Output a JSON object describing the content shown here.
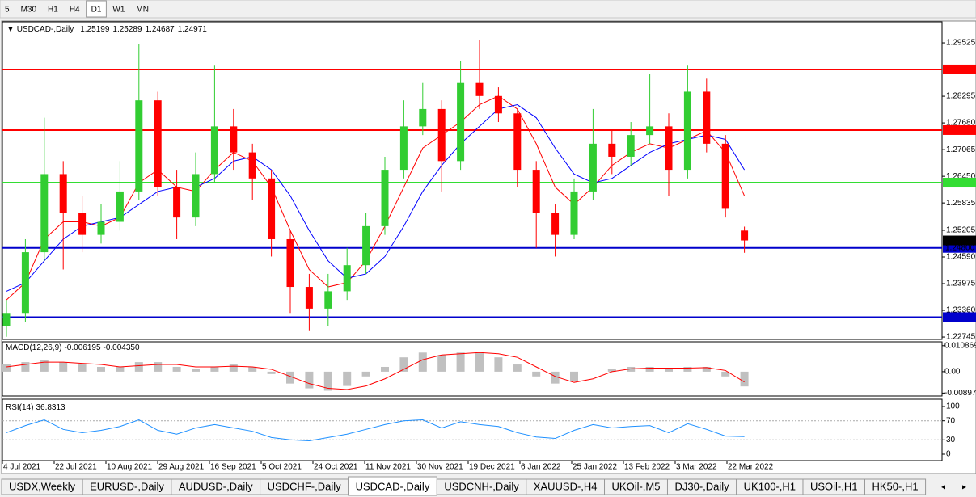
{
  "toolbar": {
    "timeframes": [
      "5",
      "M30",
      "H1",
      "H4",
      "D1",
      "W1",
      "MN"
    ]
  },
  "chart_data": {
    "type": "candlestick",
    "title": "USDCAD-,Daily",
    "bull_color": "#32cd32",
    "bear_color": "#ff0000",
    "open": [
      1.23,
      1.233,
      1.247,
      1.265,
      1.256,
      1.251,
      1.254,
      1.261,
      1.282,
      1.262,
      1.255,
      1.265,
      1.276,
      1.27,
      1.264,
      1.25,
      1.239,
      1.234,
      1.238,
      1.244,
      1.253,
      1.266,
      1.276,
      1.28,
      1.268,
      1.286,
      1.283,
      1.279,
      1.266,
      1.256,
      1.251,
      1.261,
      1.272,
      1.269,
      1.274,
      1.276,
      1.266,
      1.284,
      1.272,
      1.25199
    ],
    "high": [
      1.236,
      1.25,
      1.278,
      1.268,
      1.26,
      1.258,
      1.268,
      1.295,
      1.284,
      1.266,
      1.27,
      1.29,
      1.28,
      1.272,
      1.266,
      1.252,
      1.242,
      1.242,
      1.248,
      1.256,
      1.269,
      1.282,
      1.286,
      1.282,
      1.291,
      1.296,
      1.285,
      1.28,
      1.268,
      1.258,
      1.264,
      1.28,
      1.275,
      1.277,
      1.288,
      1.279,
      1.29,
      1.287,
      1.274,
      1.25289
    ],
    "low": [
      1.2275,
      1.231,
      1.245,
      1.243,
      1.247,
      1.249,
      1.252,
      1.259,
      1.26,
      1.25,
      1.253,
      1.263,
      1.266,
      1.259,
      1.246,
      1.233,
      1.229,
      1.23,
      1.236,
      1.242,
      1.251,
      1.264,
      1.274,
      1.261,
      1.266,
      1.28,
      1.277,
      1.262,
      1.248,
      1.246,
      1.25,
      1.259,
      1.265,
      1.267,
      1.272,
      1.26,
      1.264,
      1.27,
      1.255,
      1.24687
    ],
    "close": [
      1.233,
      1.247,
      1.265,
      1.256,
      1.251,
      1.254,
      1.261,
      1.282,
      1.262,
      1.255,
      1.265,
      1.276,
      1.27,
      1.264,
      1.25,
      1.239,
      1.234,
      1.238,
      1.244,
      1.253,
      1.266,
      1.276,
      1.28,
      1.268,
      1.286,
      1.283,
      1.279,
      1.266,
      1.256,
      1.251,
      1.261,
      1.272,
      1.269,
      1.274,
      1.276,
      1.266,
      1.284,
      1.272,
      1.257,
      1.24971
    ],
    "moving_averages": [
      {
        "color": "#ff0000",
        "values": [
          1.236,
          1.24,
          1.25,
          1.254,
          1.254,
          1.253,
          1.255,
          1.263,
          1.266,
          1.262,
          1.261,
          1.266,
          1.27,
          1.268,
          1.262,
          1.252,
          1.243,
          1.239,
          1.24,
          1.245,
          1.253,
          1.262,
          1.271,
          1.274,
          1.277,
          1.281,
          1.283,
          1.28,
          1.272,
          1.262,
          1.258,
          1.262,
          1.267,
          1.27,
          1.272,
          1.271,
          1.273,
          1.275,
          1.27,
          1.26
        ]
      },
      {
        "color": "#0000ff",
        "values": [
          1.238,
          1.24,
          1.245,
          1.25,
          1.253,
          1.254,
          1.255,
          1.258,
          1.261,
          1.262,
          1.262,
          1.264,
          1.268,
          1.269,
          1.266,
          1.26,
          1.252,
          1.245,
          1.241,
          1.242,
          1.246,
          1.253,
          1.261,
          1.267,
          1.272,
          1.276,
          1.28,
          1.281,
          1.278,
          1.271,
          1.265,
          1.263,
          1.264,
          1.267,
          1.27,
          1.272,
          1.273,
          1.274,
          1.273,
          1.266
        ]
      }
    ],
    "ylim": [
      1.2269,
      1.3001
    ],
    "yticks": [
      1.29525,
      1.28295,
      {
        "value": 1.2768,
        "label": "1.27680"
      },
      1.27065,
      {
        "value": 1.2645,
        "label": "1.26450"
      },
      1.25835,
      1.25205,
      {
        "value": 1.2459,
        "label": "1.24590"
      },
      1.23975,
      {
        "value": 1.2336,
        "label": "1.23360"
      },
      1.22745
    ],
    "levels": [
      {
        "value": 1.28912,
        "color": "#ff0000"
      },
      {
        "value": 1.27515,
        "color": "#ff0000"
      },
      {
        "value": 1.26303,
        "color": "#33dd33"
      },
      {
        "value": 1.248,
        "label": "1.24800",
        "color": "#0000cc"
      },
      {
        "value": 1.23203,
        "color": "#0000cc"
      }
    ],
    "x_labels": [
      "4 Jul 2021",
      "22 Jul 2021",
      "10 Aug 2021",
      "29 Aug 2021",
      "16 Sep 2021",
      "5 Oct 2021",
      "24 Oct 2021",
      "11 Nov 2021",
      "30 Nov 2021",
      "19 Dec 2021",
      "6 Jan 2022",
      "25 Jan 2022",
      "13 Feb 2022",
      "3 Mar 2022",
      "22 Mar 2022"
    ],
    "indicators": [
      {
        "type": "macd",
        "label": "MACD(12,26,9)",
        "histogram": {
          "color": "#c0c0c0",
          "values": [
            0.003,
            0.004,
            0.005,
            0.004,
            0.003,
            0.002,
            0.002,
            0.004,
            0.004,
            0.002,
            0.001,
            0.002,
            0.003,
            0.002,
            -0.001,
            -0.005,
            -0.007,
            -0.008,
            -0.006,
            -0.002,
            0.002,
            0.006,
            0.008,
            0.007,
            0.008,
            0.008,
            0.006,
            0.003,
            -0.002,
            -0.005,
            -0.004,
            0.0,
            0.001,
            0.002,
            0.002,
            0.001,
            0.002,
            0.002,
            -0.002,
            -0.006195
          ]
        },
        "signal": {
          "color": "#ff0000",
          "values": [
            0.002,
            0.003,
            0.004,
            0.004,
            0.0035,
            0.003,
            0.002,
            0.0025,
            0.003,
            0.003,
            0.002,
            0.002,
            0.0023,
            0.002,
            0.001,
            -0.002,
            -0.005,
            -0.007,
            -0.0075,
            -0.006,
            -0.003,
            0.001,
            0.005,
            0.007,
            0.0075,
            0.008,
            0.0075,
            0.006,
            0.002,
            -0.002,
            -0.0045,
            -0.003,
            0.0,
            0.0012,
            0.0015,
            0.0015,
            0.0015,
            0.0017,
            0.0005,
            -0.00435
          ],
          "value_labels": [
            null,
            null,
            null,
            null,
            null,
            null,
            null,
            null,
            null,
            null,
            null,
            null,
            null,
            null,
            null,
            null,
            null,
            null,
            null,
            null,
            null,
            null,
            null,
            null,
            null,
            null,
            null,
            null,
            null,
            null,
            null,
            null,
            null,
            null,
            null,
            null,
            null,
            null,
            null,
            "-0.004350"
          ]
        },
        "ylim": [
          -0.0102,
          0.0125
        ],
        "yticks": [
          0.010869,
          {
            "value": 0,
            "label": "0.00"
          },
          -0.008974
        ]
      },
      {
        "type": "rsi",
        "label": "RSI(14)",
        "line": {
          "color": "#1e90ff",
          "values": [
            45,
            60,
            72,
            52,
            45,
            50,
            58,
            72,
            50,
            42,
            55,
            62,
            55,
            48,
            35,
            30,
            28,
            35,
            42,
            52,
            62,
            70,
            72,
            55,
            68,
            62,
            58,
            45,
            36,
            33,
            50,
            62,
            55,
            58,
            60,
            45,
            64,
            52,
            38,
            36.8313
          ]
        },
        "ylim": [
          0,
          100
        ],
        "yticks": [
          100,
          70,
          30,
          0
        ],
        "levels": [
          70,
          30
        ]
      }
    ]
  },
  "tabs": [
    "USDX,Weekly",
    "EURUSD-,Daily",
    "AUDUSD-,Daily",
    "USDCHF-,Daily",
    "USDCAD-,Daily",
    "USDCNH-,Daily",
    "XAUUSD-,H4",
    "UKOil-,M5",
    "DJ30-,Daily",
    "UK100-,H1",
    "USOil-,H1",
    "HK50-,H1"
  ]
}
